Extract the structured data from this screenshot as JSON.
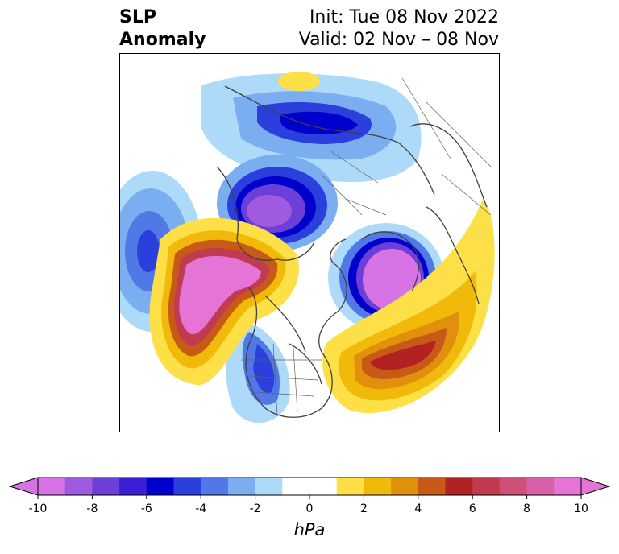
{
  "header": {
    "title_line1": "SLP",
    "title_line2": "Anomaly",
    "init_text": "Init: Tue 08 Nov 2022",
    "valid_text": "Valid: 02 Nov – 08 Nov"
  },
  "map": {
    "projection": "north-polar-stereographic",
    "field": "sea level pressure anomaly"
  },
  "colorbar": {
    "min": -10,
    "max": 10,
    "step": 1,
    "extend": "both",
    "tick_values": [
      -10,
      -8,
      -6,
      -4,
      -2,
      0,
      2,
      4,
      6,
      8,
      10
    ],
    "tick_labels": [
      "-10",
      "-8",
      "-6",
      "-4",
      "-2",
      "0",
      "2",
      "4",
      "6",
      "8",
      "10"
    ],
    "unit": "hPa",
    "colors": [
      "#d873e6",
      "#a05ae0",
      "#6b3fd8",
      "#3a1fd6",
      "#0000cc",
      "#2b3fdc",
      "#5078e6",
      "#7aaef0",
      "#acdaf8",
      "#ffffff",
      "#ffffff",
      "#fde047",
      "#f1b90a",
      "#e0900d",
      "#c85a18",
      "#b22222",
      "#c03a50",
      "#cc5078",
      "#d860a8",
      "#e673d6"
    ],
    "under_color": "#d873e6",
    "over_color": "#e673d6"
  }
}
